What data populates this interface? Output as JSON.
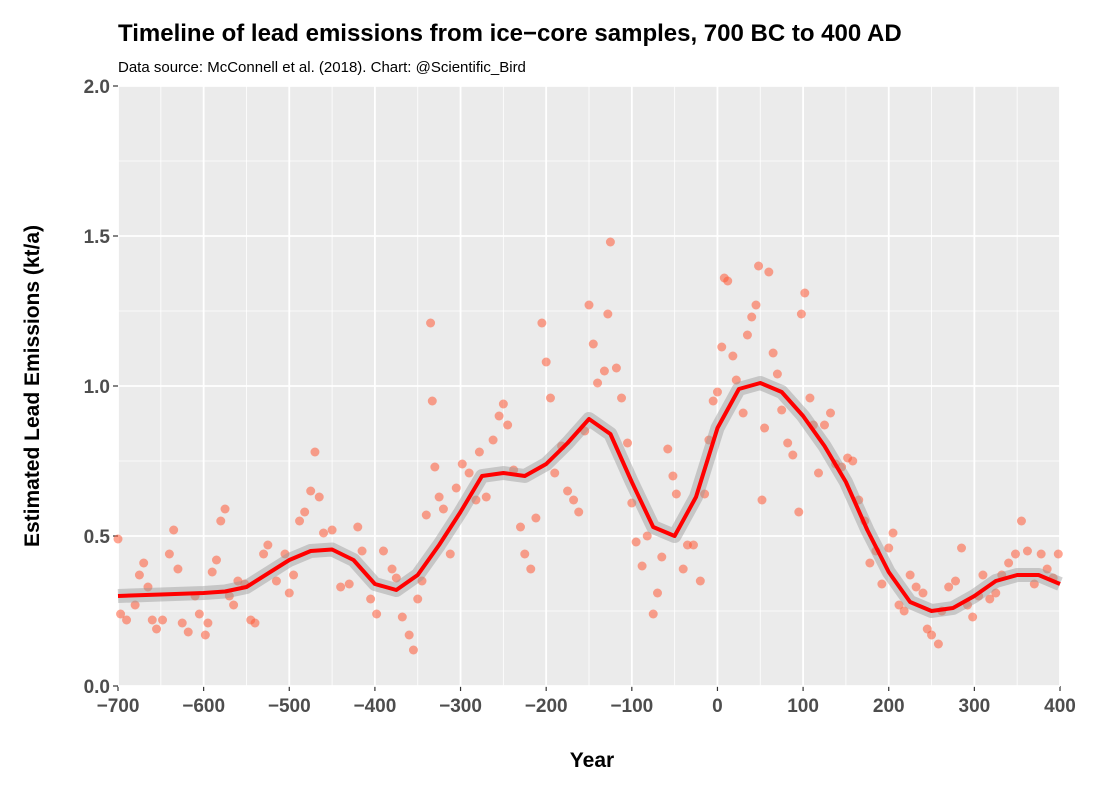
{
  "chart_data": {
    "type": "scatter",
    "title": "Timeline of lead emissions from ice−core samples, 700 BC to 400 AD",
    "subtitle": "Data source: McConnell et al. (2018). Chart: @Scientific_Bird",
    "x_label": "Year",
    "y_label": "Estimated Lead Emissions (kt/a)",
    "xlim": [
      -700,
      400
    ],
    "ylim": [
      0,
      2
    ],
    "xticks": [
      {
        "value": -700,
        "label": "−700"
      },
      {
        "value": -600,
        "label": "−600"
      },
      {
        "value": -500,
        "label": "−500"
      },
      {
        "value": -400,
        "label": "−400"
      },
      {
        "value": -300,
        "label": "−300"
      },
      {
        "value": -200,
        "label": "−200"
      },
      {
        "value": -100,
        "label": "−100"
      },
      0,
      100,
      200,
      300,
      400
    ],
    "yticks": [
      {
        "value": 0,
        "label": "0.0"
      },
      0.5,
      {
        "value": 1,
        "label": "1.0"
      },
      1.5,
      {
        "value": 2,
        "label": "2.0"
      }
    ],
    "x_minor_ticks": [
      -650,
      -550,
      -450,
      -350,
      -250,
      -150,
      -50,
      50,
      150,
      250,
      350
    ],
    "y_minor_ticks": [
      0.25,
      0.75,
      1.25,
      1.75
    ],
    "grid": true,
    "points": {
      "color": "#ff5a36",
      "x": [
        -700,
        -697,
        -690,
        -680,
        -675,
        -670,
        -665,
        -660,
        -655,
        -648,
        -640,
        -635,
        -630,
        -625,
        -618,
        -610,
        -605,
        -598,
        -595,
        -590,
        -585,
        -580,
        -575,
        -570,
        -565,
        -560,
        -552,
        -545,
        -540,
        -530,
        -525,
        -515,
        -505,
        -500,
        -495,
        -488,
        -482,
        -475,
        -470,
        -465,
        -460,
        -450,
        -440,
        -430,
        -420,
        -415,
        -405,
        -398,
        -390,
        -380,
        -375,
        -368,
        -360,
        -355,
        -350,
        -345,
        -340,
        -335,
        -333,
        -330,
        -325,
        -320,
        -312,
        -305,
        -298,
        -290,
        -282,
        -278,
        -270,
        -262,
        -255,
        -250,
        -245,
        -238,
        -230,
        -225,
        -218,
        -212,
        -205,
        -200,
        -195,
        -190,
        -182,
        -175,
        -168,
        -162,
        -155,
        -150,
        -145,
        -140,
        -132,
        -128,
        -125,
        -118,
        -112,
        -105,
        -100,
        -95,
        -88,
        -82,
        -75,
        -70,
        -65,
        -58,
        -52,
        -48,
        -40,
        -35,
        -28,
        -20,
        -15,
        -10,
        -5,
        0,
        5,
        8,
        12,
        18,
        22,
        30,
        35,
        40,
        45,
        48,
        52,
        55,
        60,
        65,
        70,
        75,
        82,
        88,
        95,
        98,
        102,
        108,
        112,
        118,
        125,
        132,
        138,
        145,
        152,
        158,
        165,
        172,
        178,
        185,
        192,
        200,
        205,
        212,
        218,
        225,
        232,
        240,
        245,
        250,
        258,
        262,
        270,
        278,
        285,
        292,
        298,
        305,
        310,
        318,
        325,
        332,
        340,
        348,
        355,
        362,
        370,
        378,
        385,
        392,
        398
      ],
      "values": [
        0.49,
        0.24,
        0.22,
        0.27,
        0.37,
        0.41,
        0.33,
        0.22,
        0.19,
        0.22,
        0.44,
        0.52,
        0.39,
        0.21,
        0.18,
        0.3,
        0.24,
        0.17,
        0.21,
        0.38,
        0.42,
        0.55,
        0.59,
        0.3,
        0.27,
        0.35,
        0.34,
        0.22,
        0.21,
        0.44,
        0.47,
        0.35,
        0.44,
        0.31,
        0.37,
        0.55,
        0.58,
        0.65,
        0.78,
        0.63,
        0.51,
        0.52,
        0.33,
        0.34,
        0.53,
        0.45,
        0.29,
        0.24,
        0.45,
        0.39,
        0.36,
        0.23,
        0.17,
        0.12,
        0.29,
        0.35,
        0.57,
        1.21,
        0.95,
        0.73,
        0.63,
        0.59,
        0.44,
        0.66,
        0.74,
        0.71,
        0.62,
        0.78,
        0.63,
        0.82,
        0.9,
        0.94,
        0.87,
        0.72,
        0.53,
        0.44,
        0.39,
        0.56,
        1.21,
        1.08,
        0.96,
        0.71,
        0.8,
        0.65,
        0.62,
        0.58,
        0.85,
        1.27,
        1.14,
        1.01,
        1.05,
        1.24,
        1.48,
        1.06,
        0.96,
        0.81,
        0.61,
        0.48,
        0.4,
        0.5,
        0.24,
        0.31,
        0.43,
        0.79,
        0.7,
        0.64,
        0.39,
        0.47,
        0.47,
        0.35,
        0.64,
        0.82,
        0.95,
        0.98,
        1.13,
        1.36,
        1.35,
        1.1,
        1.02,
        0.91,
        1.17,
        1.23,
        1.27,
        1.4,
        0.62,
        0.86,
        1.38,
        1.11,
        1.04,
        0.92,
        0.81,
        0.77,
        0.58,
        1.24,
        1.31,
        0.96,
        0.87,
        0.71,
        0.87,
        0.91,
        0.74,
        0.73,
        0.76,
        0.75,
        0.62,
        0.55,
        0.41,
        0.45,
        0.34,
        0.46,
        0.51,
        0.27,
        0.25,
        0.37,
        0.33,
        0.31,
        0.19,
        0.17,
        0.14,
        0.25,
        0.33,
        0.35,
        0.46,
        0.27,
        0.23,
        0.3,
        0.37,
        0.29,
        0.31,
        0.37,
        0.41,
        0.44,
        0.55,
        0.45,
        0.34,
        0.44,
        0.39,
        0.36,
        0.44
      ]
    },
    "trend": {
      "color": "#ff0000",
      "x": [
        -700,
        -650,
        -600,
        -575,
        -550,
        -500,
        -475,
        -450,
        -425,
        -400,
        -375,
        -350,
        -325,
        -300,
        -275,
        -250,
        -225,
        -200,
        -175,
        -150,
        -125,
        -100,
        -75,
        -50,
        -25,
        0,
        25,
        50,
        75,
        100,
        125,
        150,
        175,
        200,
        225,
        250,
        275,
        300,
        325,
        350,
        375,
        400
      ],
      "values": [
        0.3,
        0.305,
        0.31,
        0.315,
        0.33,
        0.42,
        0.45,
        0.455,
        0.42,
        0.34,
        0.32,
        0.37,
        0.47,
        0.58,
        0.7,
        0.71,
        0.7,
        0.74,
        0.81,
        0.89,
        0.84,
        0.68,
        0.53,
        0.5,
        0.63,
        0.86,
        0.99,
        1.01,
        0.98,
        0.9,
        0.8,
        0.68,
        0.52,
        0.38,
        0.28,
        0.25,
        0.26,
        0.3,
        0.35,
        0.37,
        0.37,
        0.34
      ]
    }
  }
}
